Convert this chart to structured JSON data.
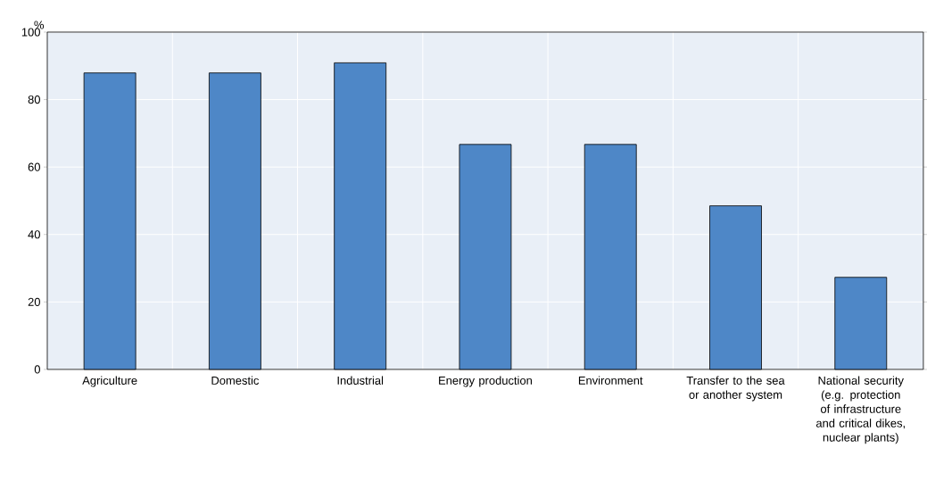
{
  "chart_data": {
    "type": "bar",
    "ylabel": "%",
    "categories": [
      "Agriculture",
      "Domestic",
      "Industrial",
      "Energy production",
      "Environment",
      "Transfer to the sea or another system",
      "National security (e.g. protection of infrastructure and critical dikes, nuclear plants)"
    ],
    "values": [
      87.9,
      87.9,
      90.9,
      66.7,
      66.7,
      48.5,
      27.3
    ],
    "color": "#4e87c7",
    "ylim": [
      0,
      100
    ],
    "yticks": [
      0,
      20,
      40,
      60,
      80,
      100
    ],
    "grid": true
  }
}
